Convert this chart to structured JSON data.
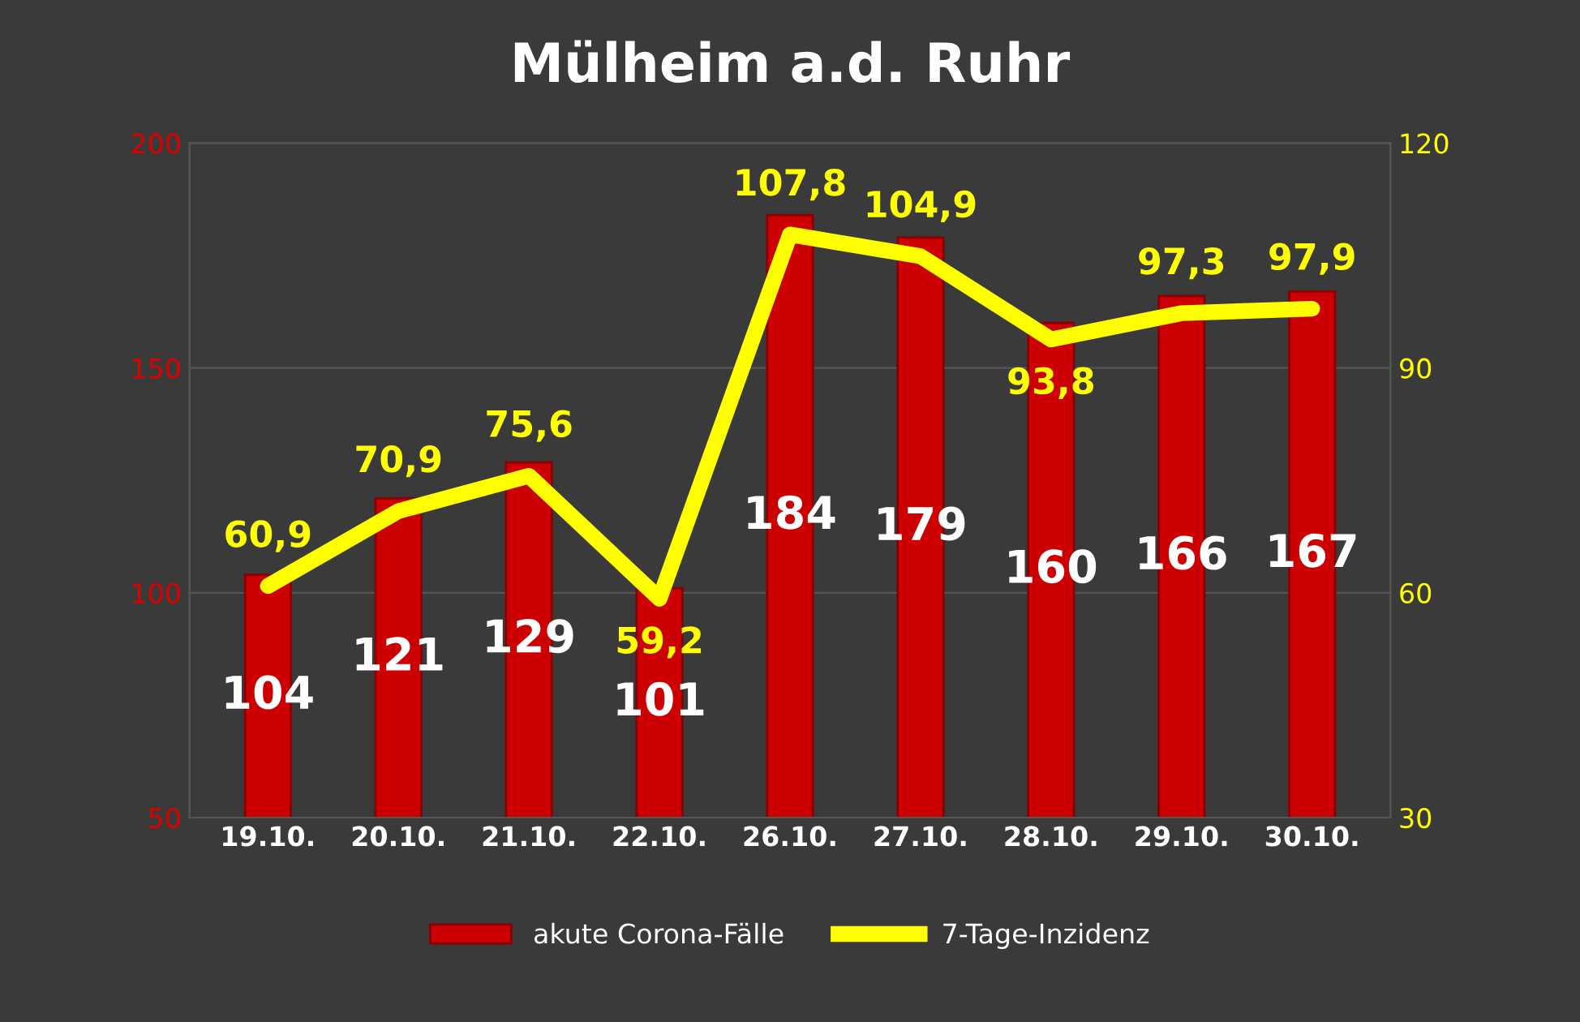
{
  "chart_data": {
    "type": "bar",
    "title": "Mülheim a.d. Ruhr",
    "categories": [
      "19.10.",
      "20.10.",
      "21.10.",
      "22.10.",
      "26.10.",
      "27.10.",
      "28.10.",
      "29.10.",
      "30.10."
    ],
    "series": [
      {
        "name": "akute Corona-Fälle",
        "color": "#cc0000",
        "values": [
          104,
          121,
          129,
          101,
          184,
          179,
          160,
          166,
          167
        ],
        "value_labels": [
          "104",
          "121",
          "129",
          "101",
          "184",
          "179",
          "160",
          "166",
          "167"
        ]
      },
      {
        "name": "7-Tage-Inzidenz",
        "type": "line",
        "axis": "y2",
        "color": "#ffff00",
        "values": [
          60.9,
          70.9,
          75.6,
          59.2,
          107.8,
          104.9,
          93.8,
          97.3,
          97.9
        ],
        "value_labels": [
          "60,9",
          "70,9",
          "75,6",
          "59,2",
          "107,8",
          "104,9",
          "93,8",
          "97,3",
          "97,9"
        ]
      }
    ],
    "ylim": [
      50,
      200
    ],
    "yticks": [
      50,
      100,
      150,
      200
    ],
    "y2lim": [
      30,
      120
    ],
    "y2ticks": [
      30,
      60,
      90,
      120
    ],
    "grid": "y",
    "legend": "bottom",
    "marker": "none",
    "line_style": "solid"
  }
}
